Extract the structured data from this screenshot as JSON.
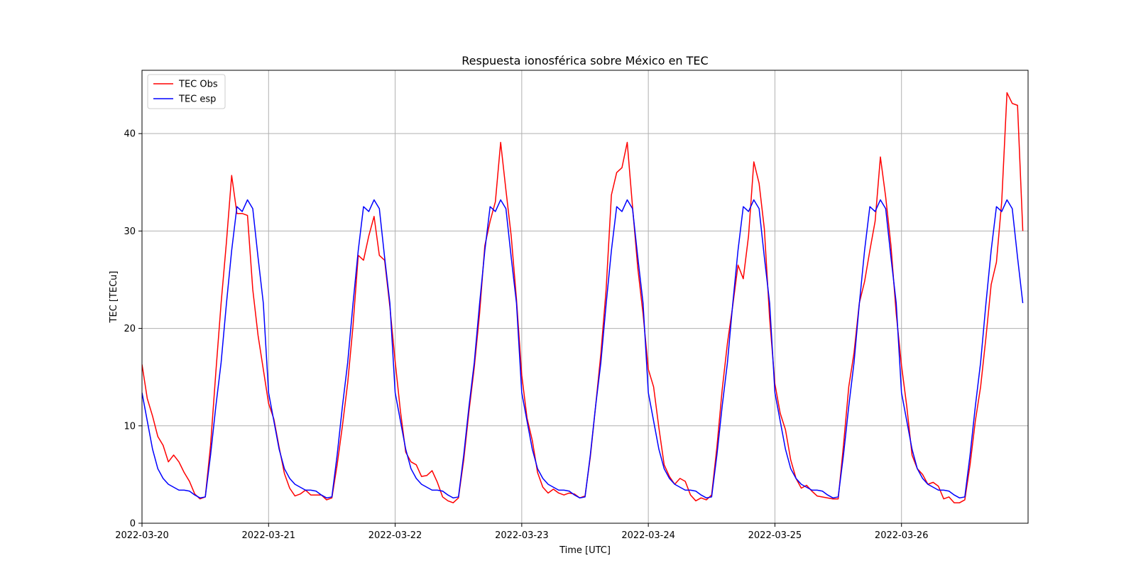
{
  "chart_data": {
    "type": "line",
    "title": "Respuesta ionosférica sobre México en TEC",
    "xlabel": "Time [UTC]",
    "ylabel": "TEC [TECu]",
    "xlim_days": [
      0,
      7
    ],
    "ylim": [
      0,
      46.5
    ],
    "grid": true,
    "legend_position": "top-left",
    "x_tick_labels": [
      "2022-03-20",
      "2022-03-21",
      "2022-03-22",
      "2022-03-23",
      "2022-03-24",
      "2022-03-25",
      "2022-03-26"
    ],
    "y_ticks": [
      0,
      10,
      20,
      30,
      40
    ],
    "y_tick_labels": [
      "0",
      "10",
      "20",
      "30",
      "40"
    ],
    "sampling_hours": 1,
    "series": [
      {
        "name": "TEC Obs",
        "color": "#ff0000",
        "values": [
          16.3,
          12.8,
          11.0,
          8.9,
          8.0,
          6.3,
          7.0,
          6.3,
          5.2,
          4.3,
          3.0,
          2.5,
          2.7,
          8.0,
          15.5,
          22.6,
          28.8,
          35.7,
          31.8,
          31.8,
          31.6,
          24.0,
          19.3,
          15.8,
          12.3,
          10.7,
          7.8,
          5.1,
          3.6,
          2.8,
          3.0,
          3.4,
          2.9,
          2.9,
          2.9,
          2.4,
          2.6,
          6.0,
          10.0,
          14.4,
          20.2,
          27.5,
          27.0,
          29.5,
          31.5,
          27.5,
          27.0,
          22.2,
          16.6,
          11.5,
          7.3,
          6.3,
          6.0,
          4.8,
          4.9,
          5.4,
          4.2,
          2.7,
          2.3,
          2.1,
          2.6,
          6.5,
          11.5,
          16.0,
          21.5,
          28.5,
          31.0,
          33.0,
          39.1,
          34.2,
          29.5,
          23.0,
          15.2,
          10.8,
          8.5,
          5.2,
          3.7,
          3.1,
          3.5,
          3.1,
          2.9,
          3.1,
          3.0,
          2.6,
          2.8,
          6.8,
          12.0,
          17.4,
          24.0,
          33.7,
          36.0,
          36.5,
          39.1,
          32.5,
          26.2,
          21.5,
          15.8,
          14.0,
          9.8,
          6.0,
          4.8,
          4.0,
          4.6,
          4.3,
          2.9,
          2.3,
          2.6,
          2.4,
          2.9,
          7.8,
          13.7,
          18.5,
          22.3,
          26.5,
          25.1,
          29.5,
          37.1,
          34.9,
          30.2,
          21.0,
          14.3,
          11.3,
          9.6,
          6.5,
          4.6,
          3.6,
          3.9,
          3.3,
          2.8,
          2.7,
          2.6,
          2.5,
          2.5,
          8.0,
          14.0,
          17.5,
          22.6,
          24.8,
          28.0,
          31.0,
          37.6,
          33.5,
          28.5,
          21.5,
          16.2,
          12.0,
          7.0,
          5.6,
          5.0,
          4.0,
          4.2,
          3.8,
          2.5,
          2.7,
          2.1,
          2.1,
          2.4,
          6.0,
          10.5,
          14.0,
          19.0,
          24.5,
          26.8,
          33.0,
          44.2,
          43.1,
          42.9,
          30.0
        ]
      },
      {
        "name": "TEC esp",
        "color": "#0000ff",
        "values": [
          13.4,
          10.5,
          7.6,
          5.6,
          4.6,
          4.0,
          3.7,
          3.4,
          3.4,
          3.3,
          2.9,
          2.6,
          2.7,
          7.0,
          12.0,
          16.5,
          22.5,
          28.0,
          32.5,
          32.0,
          33.2,
          32.3,
          27.3,
          22.6,
          13.4,
          10.5,
          7.6,
          5.6,
          4.6,
          4.0,
          3.7,
          3.4,
          3.4,
          3.3,
          2.9,
          2.6,
          2.7,
          7.0,
          12.0,
          16.5,
          22.5,
          28.0,
          32.5,
          32.0,
          33.2,
          32.3,
          27.3,
          22.6,
          13.4,
          10.5,
          7.6,
          5.6,
          4.6,
          4.0,
          3.7,
          3.4,
          3.4,
          3.3,
          2.9,
          2.6,
          2.7,
          7.0,
          12.0,
          16.5,
          22.5,
          28.0,
          32.5,
          32.0,
          33.2,
          32.3,
          27.3,
          22.6,
          13.4,
          10.5,
          7.6,
          5.6,
          4.6,
          4.0,
          3.7,
          3.4,
          3.4,
          3.3,
          2.9,
          2.6,
          2.7,
          7.0,
          12.0,
          16.5,
          22.5,
          28.0,
          32.5,
          32.0,
          33.2,
          32.3,
          27.3,
          22.6,
          13.4,
          10.5,
          7.6,
          5.6,
          4.6,
          4.0,
          3.7,
          3.4,
          3.4,
          3.3,
          2.9,
          2.6,
          2.7,
          7.0,
          12.0,
          16.5,
          22.5,
          28.0,
          32.5,
          32.0,
          33.2,
          32.3,
          27.3,
          22.6,
          13.4,
          10.5,
          7.6,
          5.6,
          4.6,
          4.0,
          3.7,
          3.4,
          3.4,
          3.3,
          2.9,
          2.6,
          2.7,
          7.0,
          12.0,
          16.5,
          22.5,
          28.0,
          32.5,
          32.0,
          33.2,
          32.3,
          27.3,
          22.6,
          13.4,
          10.5,
          7.6,
          5.6,
          4.6,
          4.0,
          3.7,
          3.4,
          3.4,
          3.3,
          2.9,
          2.6,
          2.7,
          7.0,
          12.0,
          16.5,
          22.5,
          28.0,
          32.5,
          32.0,
          33.2,
          32.3,
          27.3,
          22.6
        ]
      }
    ]
  }
}
